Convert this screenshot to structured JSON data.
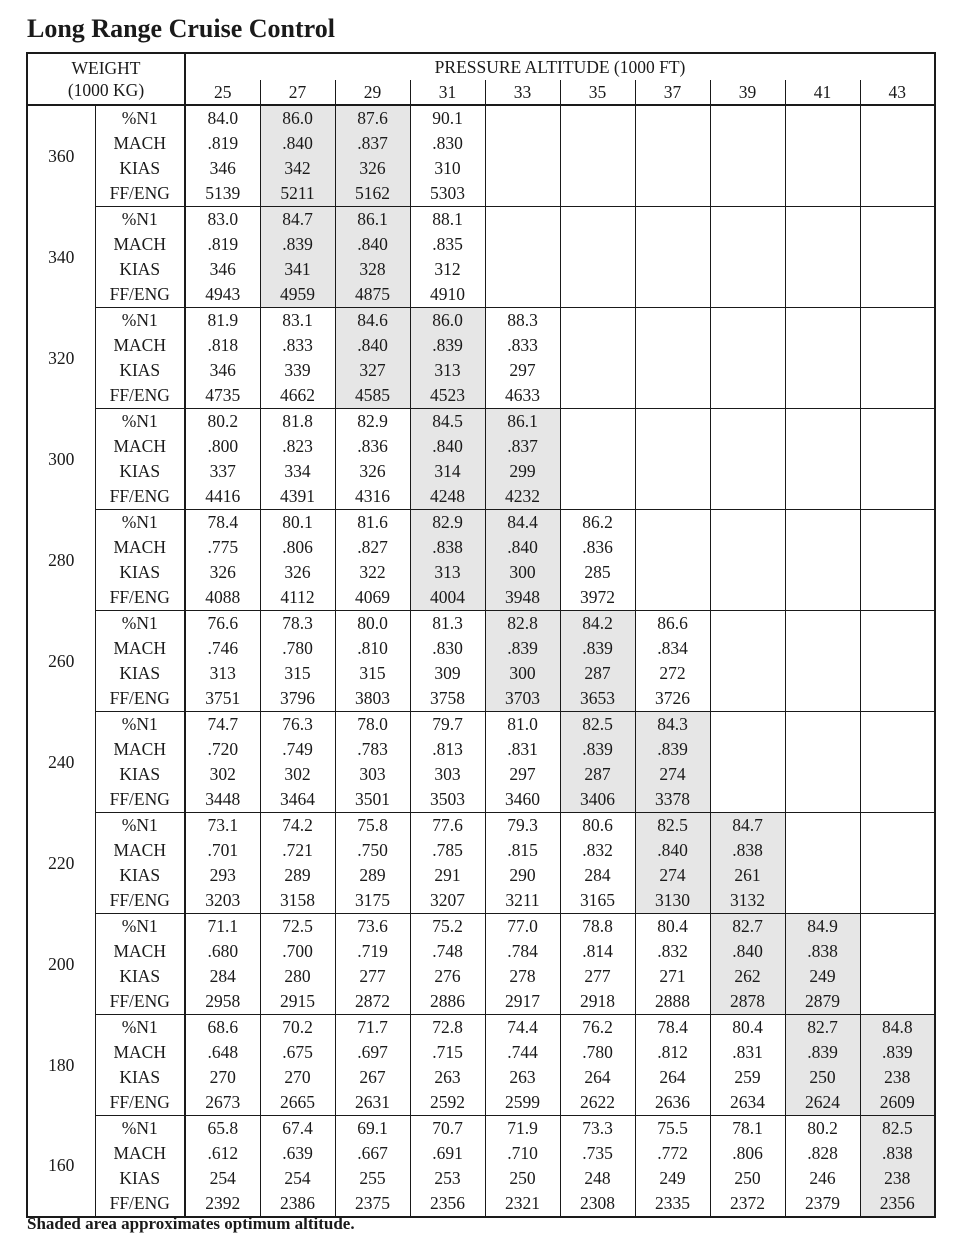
{
  "title": "Long Range Cruise Control",
  "header": {
    "weight_line1": "WEIGHT",
    "weight_line2": "(1000 KG)",
    "pressure_altitude": "PRESSURE ALTITUDE (1000 FT)"
  },
  "altitudes": [
    "25",
    "27",
    "29",
    "31",
    "33",
    "35",
    "37",
    "39",
    "41",
    "43"
  ],
  "params": [
    "%N1",
    "MACH",
    "KIAS",
    "FF/ENG"
  ],
  "shade_color": "#e6e6e6",
  "blocks": [
    {
      "weight": "360",
      "shaded": [
        1,
        2
      ],
      "rows": [
        [
          "84.0",
          "86.0",
          "87.6",
          "90.1",
          "",
          "",
          "",
          "",
          "",
          ""
        ],
        [
          ".819",
          ".840",
          ".837",
          ".830",
          "",
          "",
          "",
          "",
          "",
          ""
        ],
        [
          "346",
          "342",
          "326",
          "310",
          "",
          "",
          "",
          "",
          "",
          ""
        ],
        [
          "5139",
          "5211",
          "5162",
          "5303",
          "",
          "",
          "",
          "",
          "",
          ""
        ]
      ]
    },
    {
      "weight": "340",
      "shaded": [
        1,
        2
      ],
      "rows": [
        [
          "83.0",
          "84.7",
          "86.1",
          "88.1",
          "",
          "",
          "",
          "",
          "",
          ""
        ],
        [
          ".819",
          ".839",
          ".840",
          ".835",
          "",
          "",
          "",
          "",
          "",
          ""
        ],
        [
          "346",
          "341",
          "328",
          "312",
          "",
          "",
          "",
          "",
          "",
          ""
        ],
        [
          "4943",
          "4959",
          "4875",
          "4910",
          "",
          "",
          "",
          "",
          "",
          ""
        ]
      ]
    },
    {
      "weight": "320",
      "shaded": [
        2,
        3
      ],
      "rows": [
        [
          "81.9",
          "83.1",
          "84.6",
          "86.0",
          "88.3",
          "",
          "",
          "",
          "",
          ""
        ],
        [
          ".818",
          ".833",
          ".840",
          ".839",
          ".833",
          "",
          "",
          "",
          "",
          ""
        ],
        [
          "346",
          "339",
          "327",
          "313",
          "297",
          "",
          "",
          "",
          "",
          ""
        ],
        [
          "4735",
          "4662",
          "4585",
          "4523",
          "4633",
          "",
          "",
          "",
          "",
          ""
        ]
      ]
    },
    {
      "weight": "300",
      "shaded": [
        3,
        4
      ],
      "rows": [
        [
          "80.2",
          "81.8",
          "82.9",
          "84.5",
          "86.1",
          "",
          "",
          "",
          "",
          ""
        ],
        [
          ".800",
          ".823",
          ".836",
          ".840",
          ".837",
          "",
          "",
          "",
          "",
          ""
        ],
        [
          "337",
          "334",
          "326",
          "314",
          "299",
          "",
          "",
          "",
          "",
          ""
        ],
        [
          "4416",
          "4391",
          "4316",
          "4248",
          "4232",
          "",
          "",
          "",
          "",
          ""
        ]
      ]
    },
    {
      "weight": "280",
      "shaded": [
        3,
        4
      ],
      "rows": [
        [
          "78.4",
          "80.1",
          "81.6",
          "82.9",
          "84.4",
          "86.2",
          "",
          "",
          "",
          ""
        ],
        [
          ".775",
          ".806",
          ".827",
          ".838",
          ".840",
          ".836",
          "",
          "",
          "",
          ""
        ],
        [
          "326",
          "326",
          "322",
          "313",
          "300",
          "285",
          "",
          "",
          "",
          ""
        ],
        [
          "4088",
          "4112",
          "4069",
          "4004",
          "3948",
          "3972",
          "",
          "",
          "",
          ""
        ]
      ]
    },
    {
      "weight": "260",
      "shaded": [
        4,
        5
      ],
      "rows": [
        [
          "76.6",
          "78.3",
          "80.0",
          "81.3",
          "82.8",
          "84.2",
          "86.6",
          "",
          "",
          ""
        ],
        [
          ".746",
          ".780",
          ".810",
          ".830",
          ".839",
          ".839",
          ".834",
          "",
          "",
          ""
        ],
        [
          "313",
          "315",
          "315",
          "309",
          "300",
          "287",
          "272",
          "",
          "",
          ""
        ],
        [
          "3751",
          "3796",
          "3803",
          "3758",
          "3703",
          "3653",
          "3726",
          "",
          "",
          ""
        ]
      ]
    },
    {
      "weight": "240",
      "shaded": [
        5,
        6
      ],
      "rows": [
        [
          "74.7",
          "76.3",
          "78.0",
          "79.7",
          "81.0",
          "82.5",
          "84.3",
          "",
          "",
          ""
        ],
        [
          ".720",
          ".749",
          ".783",
          ".813",
          ".831",
          ".839",
          ".839",
          "",
          "",
          ""
        ],
        [
          "302",
          "302",
          "303",
          "303",
          "297",
          "287",
          "274",
          "",
          "",
          ""
        ],
        [
          "3448",
          "3464",
          "3501",
          "3503",
          "3460",
          "3406",
          "3378",
          "",
          "",
          ""
        ]
      ]
    },
    {
      "weight": "220",
      "shaded": [
        6,
        7
      ],
      "rows": [
        [
          "73.1",
          "74.2",
          "75.8",
          "77.6",
          "79.3",
          "80.6",
          "82.5",
          "84.7",
          "",
          ""
        ],
        [
          ".701",
          ".721",
          ".750",
          ".785",
          ".815",
          ".832",
          ".840",
          ".838",
          "",
          ""
        ],
        [
          "293",
          "289",
          "289",
          "291",
          "290",
          "284",
          "274",
          "261",
          "",
          ""
        ],
        [
          "3203",
          "3158",
          "3175",
          "3207",
          "3211",
          "3165",
          "3130",
          "3132",
          "",
          ""
        ]
      ]
    },
    {
      "weight": "200",
      "shaded": [
        7,
        8
      ],
      "rows": [
        [
          "71.1",
          "72.5",
          "73.6",
          "75.2",
          "77.0",
          "78.8",
          "80.4",
          "82.7",
          "84.9",
          ""
        ],
        [
          ".680",
          ".700",
          ".719",
          ".748",
          ".784",
          ".814",
          ".832",
          ".840",
          ".838",
          ""
        ],
        [
          "284",
          "280",
          "277",
          "276",
          "278",
          "277",
          "271",
          "262",
          "249",
          ""
        ],
        [
          "2958",
          "2915",
          "2872",
          "2886",
          "2917",
          "2918",
          "2888",
          "2878",
          "2879",
          ""
        ]
      ]
    },
    {
      "weight": "180",
      "shaded": [
        8,
        9
      ],
      "rows": [
        [
          "68.6",
          "70.2",
          "71.7",
          "72.8",
          "74.4",
          "76.2",
          "78.4",
          "80.4",
          "82.7",
          "84.8"
        ],
        [
          ".648",
          ".675",
          ".697",
          ".715",
          ".744",
          ".780",
          ".812",
          ".831",
          ".839",
          ".839"
        ],
        [
          "270",
          "270",
          "267",
          "263",
          "263",
          "264",
          "264",
          "259",
          "250",
          "238"
        ],
        [
          "2673",
          "2665",
          "2631",
          "2592",
          "2599",
          "2622",
          "2636",
          "2634",
          "2624",
          "2609"
        ]
      ]
    },
    {
      "weight": "160",
      "shaded": [
        9
      ],
      "rows": [
        [
          "65.8",
          "67.4",
          "69.1",
          "70.7",
          "71.9",
          "73.3",
          "75.5",
          "78.1",
          "80.2",
          "82.5"
        ],
        [
          ".612",
          ".639",
          ".667",
          ".691",
          ".710",
          ".735",
          ".772",
          ".806",
          ".828",
          ".838"
        ],
        [
          "254",
          "254",
          "255",
          "253",
          "250",
          "248",
          "249",
          "250",
          "246",
          "238"
        ],
        [
          "2392",
          "2386",
          "2375",
          "2356",
          "2321",
          "2308",
          "2335",
          "2372",
          "2379",
          "2356"
        ]
      ]
    }
  ],
  "footnote": "Shaded area approximates optimum altitude."
}
